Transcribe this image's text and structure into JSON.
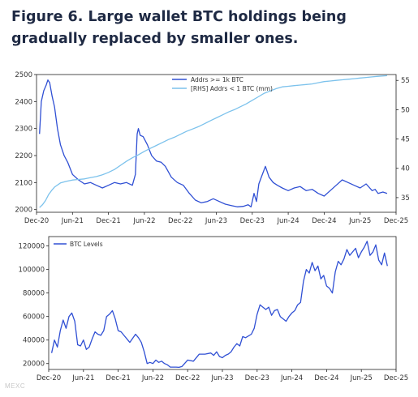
{
  "figure": {
    "title": "Figure 6. Large wallet BTC holdings being gradually replaced by smaller ones.",
    "watermark": "MEXC"
  },
  "colors": {
    "dark_line": "#3050d4",
    "light_line": "#7cc2ec",
    "axis": "#222222",
    "text": "#333333"
  },
  "chart_data": [
    {
      "type": "line",
      "title": "",
      "x_ticks": [
        "Dec-20",
        "Jun-21",
        "Dec-21",
        "Jun-22",
        "Dec-22",
        "Jun-23",
        "Dec-23",
        "Jun-24",
        "Dec-24",
        "Jun-25",
        "Dec-25"
      ],
      "ylim_left": [
        1990,
        2500
      ],
      "yticks_left": [
        2000,
        2100,
        2200,
        2300,
        2400,
        2500
      ],
      "ylim_right": [
        32.5,
        56
      ],
      "yticks_right": [
        35,
        40,
        45,
        50,
        55
      ],
      "xlim_months": [
        0,
        60
      ],
      "legend": {
        "placement": "top-center"
      },
      "series": [
        {
          "name": "Addrs >= 1k BTC",
          "axis": "left",
          "color": "#3050d4",
          "x": [
            0.5,
            0.8,
            1.2,
            1.6,
            1.9,
            2.2,
            2.6,
            3.0,
            3.5,
            4.0,
            4.6,
            5.2,
            6.0,
            7.0,
            8.0,
            9.0,
            10.0,
            11.0,
            12.0,
            13.0,
            14.0,
            15.0,
            16.0,
            16.5,
            16.8,
            17.0,
            17.3,
            17.8,
            18.5,
            19.2,
            20.0,
            20.8,
            21.5,
            22.5,
            23.5,
            24.5,
            25.5,
            26.5,
            27.5,
            28.5,
            29.5,
            30.5,
            31.5,
            32.5,
            33.5,
            34.5,
            35.3,
            35.8,
            36.3,
            36.7,
            37.1,
            37.6,
            38.2,
            38.8,
            39.5,
            40.2,
            41.0,
            42.0,
            43.0,
            44.0,
            45.0,
            46.0,
            47.0,
            48.0,
            49.0,
            50.0,
            51.0,
            52.0,
            53.0,
            54.0,
            55.0,
            56.0,
            56.5,
            57.0,
            57.8,
            58.5
          ],
          "y": [
            2280,
            2400,
            2440,
            2460,
            2480,
            2470,
            2420,
            2380,
            2300,
            2240,
            2200,
            2175,
            2130,
            2110,
            2095,
            2100,
            2090,
            2080,
            2090,
            2100,
            2095,
            2100,
            2090,
            2130,
            2280,
            2300,
            2275,
            2270,
            2240,
            2200,
            2180,
            2175,
            2160,
            2120,
            2100,
            2090,
            2060,
            2035,
            2025,
            2030,
            2040,
            2030,
            2020,
            2015,
            2010,
            2012,
            2018,
            2010,
            2060,
            2030,
            2095,
            2125,
            2160,
            2120,
            2100,
            2090,
            2080,
            2070,
            2080,
            2085,
            2070,
            2075,
            2060,
            2050,
            2070,
            2090,
            2110,
            2100,
            2090,
            2080,
            2095,
            2070,
            2075,
            2060,
            2065,
            2060
          ]
        },
        {
          "name": "[RHS] Addrs < 1 BTC (mm)",
          "axis": "right",
          "color": "#7cc2ec",
          "x": [
            0.5,
            1.0,
            1.5,
            2.0,
            2.5,
            3.0,
            4.0,
            5.0,
            6.0,
            7.0,
            8.0,
            9.0,
            10.0,
            11.0,
            12.0,
            13.0,
            14.0,
            15.0,
            16.0,
            17.0,
            18.0,
            19.0,
            20.0,
            21.0,
            22.0,
            23.0,
            24.0,
            25.0,
            26.0,
            27.0,
            28.0,
            29.0,
            30.0,
            31.0,
            32.0,
            33.0,
            34.0,
            35.0,
            36.0,
            37.0,
            38.0,
            39.0,
            40.0,
            41.0,
            42.0,
            43.0,
            44.0,
            45.0,
            46.0,
            47.0,
            48.0,
            49.0,
            50.0,
            51.0,
            52.0,
            53.0,
            54.0,
            55.0,
            56.0,
            57.0,
            58.5
          ],
          "y": [
            33.3,
            33.8,
            34.5,
            35.5,
            36.2,
            36.8,
            37.5,
            37.8,
            38.0,
            38.1,
            38.2,
            38.4,
            38.6,
            38.9,
            39.3,
            39.8,
            40.5,
            41.2,
            41.8,
            42.3,
            42.9,
            43.4,
            43.9,
            44.4,
            44.9,
            45.3,
            45.8,
            46.3,
            46.7,
            47.1,
            47.6,
            48.1,
            48.6,
            49.1,
            49.6,
            50.0,
            50.5,
            51.0,
            51.6,
            52.2,
            52.8,
            53.2,
            53.6,
            53.9,
            54.0,
            54.1,
            54.2,
            54.3,
            54.4,
            54.6,
            54.8,
            54.9,
            55.0,
            55.1,
            55.2,
            55.3,
            55.4,
            55.5,
            55.6,
            55.7,
            55.8
          ]
        }
      ]
    },
    {
      "type": "line",
      "title": "",
      "x_ticks": [
        "Dec-20",
        "Jun-21",
        "Dec-21",
        "Jun-22",
        "Dec-22",
        "Jun-23",
        "Dec-23",
        "Jun-24",
        "Dec-24",
        "Jun-25",
        "Dec-25"
      ],
      "ylim": [
        15000,
        128000
      ],
      "yticks": [
        20000,
        40000,
        60000,
        80000,
        100000,
        120000
      ],
      "xlim_months": [
        0,
        60
      ],
      "legend": {
        "placement": "top-left"
      },
      "series": [
        {
          "name": "BTC Levels",
          "color": "#3050d4",
          "x": [
            0.5,
            1.0,
            1.5,
            2.0,
            2.5,
            3.0,
            3.5,
            4.0,
            4.5,
            5.0,
            5.5,
            6.0,
            6.5,
            7.0,
            7.5,
            8.0,
            8.5,
            9.0,
            9.5,
            10.0,
            10.5,
            11.0,
            11.5,
            12.0,
            12.5,
            13.0,
            14.0,
            15.0,
            15.5,
            16.0,
            16.5,
            17.0,
            17.5,
            18.0,
            18.5,
            19.0,
            19.5,
            20.0,
            20.5,
            21.0,
            22.0,
            22.5,
            23.0,
            24.0,
            25.0,
            26.0,
            27.0,
            28.0,
            28.5,
            29.0,
            29.5,
            30.0,
            30.5,
            31.0,
            31.5,
            32.0,
            32.5,
            33.0,
            33.5,
            34.0,
            35.0,
            35.5,
            36.0,
            36.5,
            37.0,
            37.5,
            38.0,
            38.5,
            39.0,
            39.5,
            40.0,
            40.5,
            41.0,
            41.5,
            42.0,
            42.5,
            43.0,
            43.5,
            44.0,
            44.5,
            45.0,
            45.5,
            46.0,
            46.5,
            47.0,
            47.5,
            48.0,
            48.5,
            49.0,
            49.5,
            50.0,
            50.5,
            51.0,
            51.5,
            52.0,
            53.0,
            53.5,
            54.0,
            54.5,
            55.0,
            55.5,
            56.0,
            56.5,
            57.0,
            57.5,
            58.0,
            58.5
          ],
          "y": [
            29000,
            40000,
            34000,
            48000,
            57000,
            50000,
            60000,
            63000,
            56000,
            36000,
            35000,
            40000,
            32000,
            34000,
            41000,
            47000,
            45000,
            44000,
            48000,
            60000,
            62000,
            65000,
            58000,
            48000,
            47000,
            44000,
            38000,
            45000,
            42000,
            38000,
            30000,
            20000,
            21000,
            20000,
            23000,
            21000,
            22000,
            20000,
            19000,
            17000,
            17000,
            16800,
            17500,
            23000,
            22000,
            28000,
            28000,
            29000,
            27000,
            30000,
            26000,
            25000,
            27000,
            28000,
            30000,
            34000,
            37000,
            35000,
            43000,
            42000,
            45000,
            50000,
            62000,
            70000,
            68000,
            66000,
            68000,
            61000,
            65000,
            66000,
            60000,
            58000,
            56000,
            60000,
            63000,
            65000,
            70000,
            72000,
            90000,
            100000,
            97000,
            106000,
            99000,
            103000,
            92000,
            95000,
            86000,
            84000,
            80000,
            98000,
            107000,
            104000,
            109000,
            117000,
            112000,
            118000,
            110000,
            115000,
            119000,
            124000,
            112000,
            115000,
            121000,
            108000,
            104000,
            114000,
            103000
          ]
        }
      ]
    }
  ]
}
